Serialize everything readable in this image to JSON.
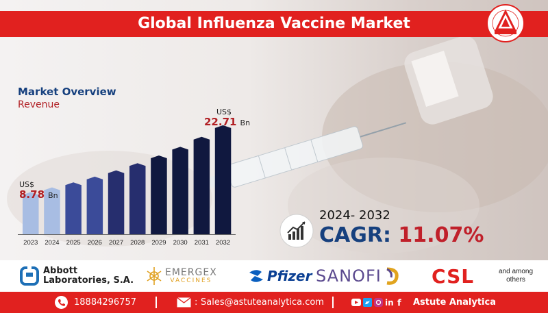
{
  "header": {
    "title": "Global Influenza Vaccine Market",
    "logo_text": "ASTUTE ANALYTICA",
    "logo_ring_text": "Powered By Data | Guided By Intelligence"
  },
  "overview": {
    "title": "Market Overview",
    "subtitle": "Revenue"
  },
  "chart_data": {
    "type": "bar",
    "title": "",
    "categories": [
      "2023",
      "2024",
      "2025",
      "2026",
      "2027",
      "2028",
      "2029",
      "2030",
      "2031",
      "2032"
    ],
    "values": [
      8.78,
      9.75,
      10.8,
      12.0,
      13.3,
      14.8,
      16.4,
      18.2,
      20.3,
      22.71
    ],
    "unit": "US$ Bn",
    "ylim": [
      0,
      25
    ],
    "grid": false,
    "legend": "none",
    "annotations": [
      {
        "category": "2023",
        "currency": "US$",
        "value": "8.78",
        "unit": "Bn"
      },
      {
        "category": "2032",
        "currency": "US$",
        "value": "22.71",
        "unit": "Bn"
      }
    ],
    "colors": {
      "light": "#a8bde3",
      "mid": "#3b4b99",
      "dark": "#10183f"
    }
  },
  "cagr": {
    "period": "2024- 2032",
    "label": "CAGR",
    "separator": ":",
    "value": "11.07%",
    "icon": "growth-chart-icon"
  },
  "companies": {
    "abbott_line1": "Abbott",
    "abbott_line2": "Laboratories, S.A.",
    "emergex_line1": "EMERGEX",
    "emergex_line2": "VACCINES",
    "pfizer": "Pfizer",
    "sanofi": "SANOFI",
    "csl": "CSL",
    "others_line1": "and among",
    "others_line2": "others"
  },
  "footer": {
    "phone": "18884296757",
    "email": "Sales@astuteanalytica.com",
    "brand": "Astute Analytica",
    "social_icons": [
      "youtube-icon",
      "twitter-icon",
      "instagram-icon",
      "linkedin-icon",
      "facebook-icon"
    ]
  },
  "colors": {
    "brand_red": "#e1211f",
    "navy": "#16407e",
    "accent_red": "#c0202a"
  }
}
